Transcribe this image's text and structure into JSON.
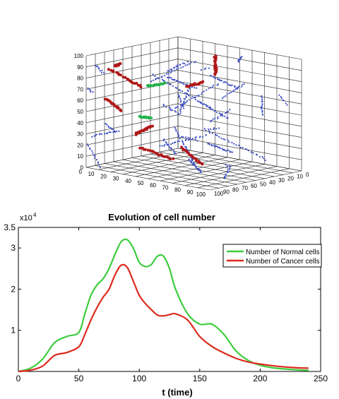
{
  "chart_data": [
    {
      "type": "scatter",
      "projection": "3d",
      "title": "",
      "xlabel": "",
      "ylabel": "",
      "zlabel": "",
      "xlim": [
        0,
        100
      ],
      "ylim": [
        0,
        100
      ],
      "zlim": [
        0,
        100
      ],
      "x_ticks": [
        "0",
        "10",
        "20",
        "30",
        "40",
        "50",
        "60",
        "70",
        "80",
        "90",
        "100"
      ],
      "y_ticks": [
        "0",
        "10",
        "20",
        "30",
        "40",
        "50",
        "60",
        "70",
        "80",
        "90",
        "100"
      ],
      "z_ticks": [
        "0",
        "10",
        "20",
        "30",
        "40",
        "50",
        "60",
        "70",
        "80",
        "90",
        "100"
      ],
      "grid": true,
      "series": [
        {
          "key": "vessels",
          "color": "#3c4fc4"
        },
        {
          "key": "cancer",
          "color": "#b01818"
        },
        {
          "key": "normal",
          "color": "#22b44a"
        }
      ]
    },
    {
      "type": "line",
      "title": "Evolution of cell number",
      "xlabel": "t (time)",
      "ylabel": "",
      "xlim": [
        0,
        250
      ],
      "ylim": [
        0,
        35000
      ],
      "y_exponent_label": "x10",
      "y_exponent_power": "4",
      "x_ticks": [
        "0",
        "50",
        "100",
        "150",
        "200",
        "250"
      ],
      "y_ticks": [
        "1",
        "2",
        "3",
        "3.5"
      ],
      "legend_position": "top-right",
      "series": [
        {
          "name": "Number of Normal cells",
          "color": "#3dcc3d",
          "x": [
            0,
            10,
            20,
            30,
            40,
            50,
            55,
            60,
            65,
            70,
            75,
            80,
            85,
            90,
            95,
            100,
            105,
            110,
            115,
            120,
            125,
            130,
            140,
            150,
            160,
            170,
            180,
            190,
            200,
            210,
            220,
            230,
            240
          ],
          "y": [
            0,
            800,
            3000,
            7000,
            8500,
            9500,
            14000,
            18500,
            21000,
            22500,
            25000,
            28500,
            31500,
            32000,
            30000,
            26500,
            25500,
            26000,
            28000,
            28000,
            25000,
            20000,
            14000,
            11500,
            11500,
            9000,
            5000,
            2700,
            1500,
            900,
            600,
            400,
            250
          ]
        },
        {
          "name": "Number of Cancer cells",
          "color": "#dd2a1e",
          "x": [
            0,
            10,
            20,
            30,
            40,
            50,
            55,
            60,
            65,
            70,
            75,
            80,
            85,
            90,
            95,
            100,
            105,
            110,
            115,
            120,
            125,
            130,
            140,
            150,
            160,
            170,
            180,
            190,
            200,
            210,
            220,
            230,
            240
          ],
          "y": [
            0,
            300,
            1300,
            3900,
            4600,
            6000,
            9000,
            12500,
            15500,
            18000,
            20000,
            23500,
            25800,
            25300,
            22000,
            18500,
            16500,
            15000,
            13700,
            13500,
            13800,
            14000,
            12500,
            8500,
            6100,
            4500,
            3200,
            2300,
            1800,
            1400,
            1100,
            900,
            800
          ]
        }
      ]
    }
  ]
}
